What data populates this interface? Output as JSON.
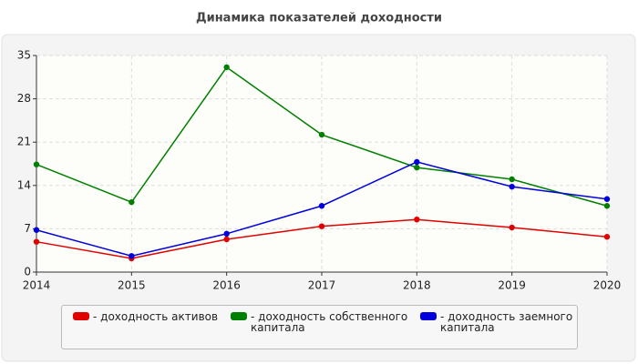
{
  "chart_data": {
    "type": "line",
    "title": "Динамика показателей доходности",
    "categories": [
      "2014",
      "2015",
      "2016",
      "2017",
      "2018",
      "2019",
      "2020"
    ],
    "series": [
      {
        "name": "- доходность активов",
        "color": "#e00000",
        "values": [
          4.9,
          2.2,
          5.3,
          7.4,
          8.5,
          7.2,
          5.7
        ]
      },
      {
        "name": "- доходность собственного капитала",
        "color": "#008000",
        "values": [
          17.4,
          11.3,
          33.1,
          22.2,
          16.9,
          15.0,
          10.7
        ]
      },
      {
        "name": "- доходность заемного капитала",
        "color": "#0000dd",
        "values": [
          6.8,
          2.6,
          6.2,
          10.7,
          17.8,
          13.8,
          11.8
        ]
      }
    ],
    "ylim": [
      0,
      35
    ],
    "yticks": [
      0,
      7,
      14,
      21,
      28,
      35
    ],
    "grid": true
  }
}
